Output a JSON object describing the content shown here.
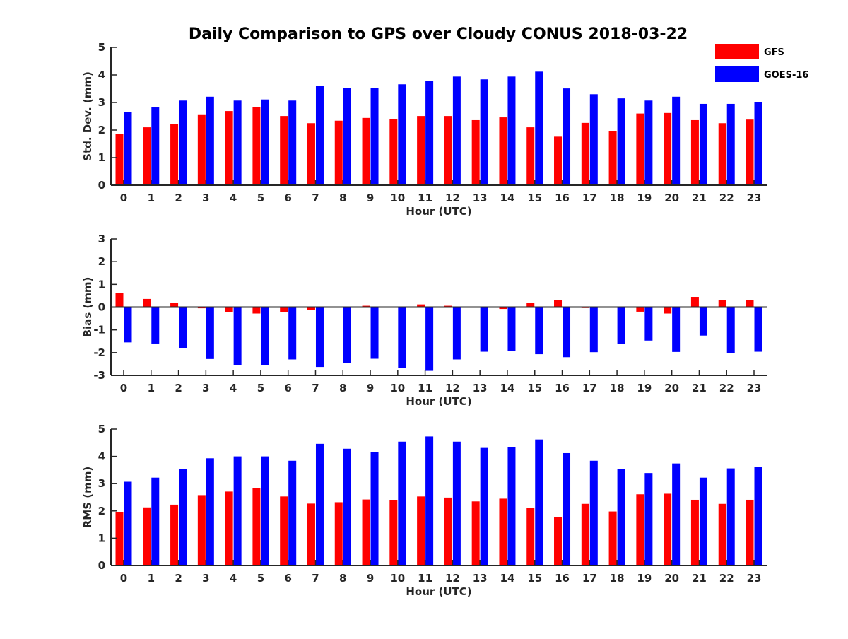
{
  "title": "Daily Comparison to GPS over Cloudy CONUS 2018-03-22",
  "legend": {
    "placement": "top-right",
    "entries": [
      {
        "name": "GFS",
        "color": "#ff0000"
      },
      {
        "name": "GOES-16",
        "color": "#0000ff"
      }
    ]
  },
  "chart_data": [
    {
      "type": "bar",
      "xlabel": "Hour (UTC)",
      "ylabel": "Std. Dev. (mm)",
      "ylim": [
        0,
        5
      ],
      "yticks": [
        0,
        1,
        2,
        3,
        4,
        5
      ],
      "categories": [
        "0",
        "1",
        "2",
        "3",
        "4",
        "5",
        "6",
        "7",
        "8",
        "9",
        "10",
        "11",
        "12",
        "13",
        "14",
        "15",
        "16",
        "17",
        "18",
        "19",
        "20",
        "21",
        "22",
        "23"
      ],
      "series": [
        {
          "name": "GFS",
          "color": "#ff0000",
          "values": [
            1.85,
            2.1,
            2.22,
            2.57,
            2.69,
            2.83,
            2.51,
            2.25,
            2.34,
            2.44,
            2.41,
            2.51,
            2.51,
            2.36,
            2.46,
            2.1,
            1.76,
            2.26,
            1.97,
            2.6,
            2.62,
            2.36,
            2.25,
            2.38
          ]
        },
        {
          "name": "GOES-16",
          "color": "#0000ff",
          "values": [
            2.65,
            2.82,
            3.07,
            3.21,
            3.07,
            3.11,
            3.07,
            3.6,
            3.52,
            3.52,
            3.66,
            3.78,
            3.94,
            3.84,
            3.94,
            4.12,
            3.51,
            3.3,
            3.15,
            3.07,
            3.21,
            2.95,
            2.95,
            3.02
          ]
        }
      ]
    },
    {
      "type": "bar",
      "xlabel": "Hour (UTC)",
      "ylabel": "Bias (mm)",
      "ylim": [
        -3,
        3
      ],
      "yticks": [
        -3,
        -2,
        -1,
        0,
        1,
        2,
        3
      ],
      "categories": [
        "0",
        "1",
        "2",
        "3",
        "4",
        "5",
        "6",
        "7",
        "8",
        "9",
        "10",
        "11",
        "12",
        "13",
        "14",
        "15",
        "16",
        "17",
        "18",
        "19",
        "20",
        "21",
        "22",
        "23"
      ],
      "series": [
        {
          "name": "GFS",
          "color": "#ff0000",
          "values": [
            0.62,
            0.36,
            0.18,
            -0.05,
            -0.22,
            -0.28,
            -0.22,
            -0.12,
            -0.02,
            0.06,
            0.02,
            0.12,
            0.06,
            0.03,
            -0.08,
            0.18,
            0.3,
            -0.04,
            0.03,
            -0.2,
            -0.28,
            0.45,
            0.3,
            0.3
          ]
        },
        {
          "name": "GOES-16",
          "color": "#0000ff",
          "values": [
            -1.55,
            -1.6,
            -1.8,
            -2.28,
            -2.55,
            -2.55,
            -2.3,
            -2.63,
            -2.45,
            -2.27,
            -2.66,
            -2.8,
            -2.3,
            -1.96,
            -1.93,
            -2.07,
            -2.2,
            -1.98,
            -1.62,
            -1.47,
            -1.97,
            -1.25,
            -2.02,
            -1.96
          ]
        }
      ]
    },
    {
      "type": "bar",
      "xlabel": "Hour (UTC)",
      "ylabel": "RMS (mm)",
      "ylim": [
        0,
        5
      ],
      "yticks": [
        0,
        1,
        2,
        3,
        4,
        5
      ],
      "categories": [
        "0",
        "1",
        "2",
        "3",
        "4",
        "5",
        "6",
        "7",
        "8",
        "9",
        "10",
        "11",
        "12",
        "13",
        "14",
        "15",
        "16",
        "17",
        "18",
        "19",
        "20",
        "21",
        "22",
        "23"
      ],
      "series": [
        {
          "name": "GFS",
          "color": "#ff0000",
          "values": [
            1.96,
            2.13,
            2.23,
            2.58,
            2.71,
            2.83,
            2.53,
            2.27,
            2.32,
            2.42,
            2.39,
            2.53,
            2.49,
            2.35,
            2.45,
            2.1,
            1.78,
            2.26,
            1.98,
            2.61,
            2.63,
            2.41,
            2.26,
            2.41
          ]
        },
        {
          "name": "GOES-16",
          "color": "#0000ff",
          "values": [
            3.07,
            3.22,
            3.54,
            3.93,
            4.0,
            4.0,
            3.84,
            4.46,
            4.28,
            4.17,
            4.54,
            4.73,
            4.54,
            4.31,
            4.35,
            4.62,
            4.12,
            3.84,
            3.53,
            3.39,
            3.74,
            3.22,
            3.56,
            3.61
          ]
        }
      ]
    }
  ]
}
